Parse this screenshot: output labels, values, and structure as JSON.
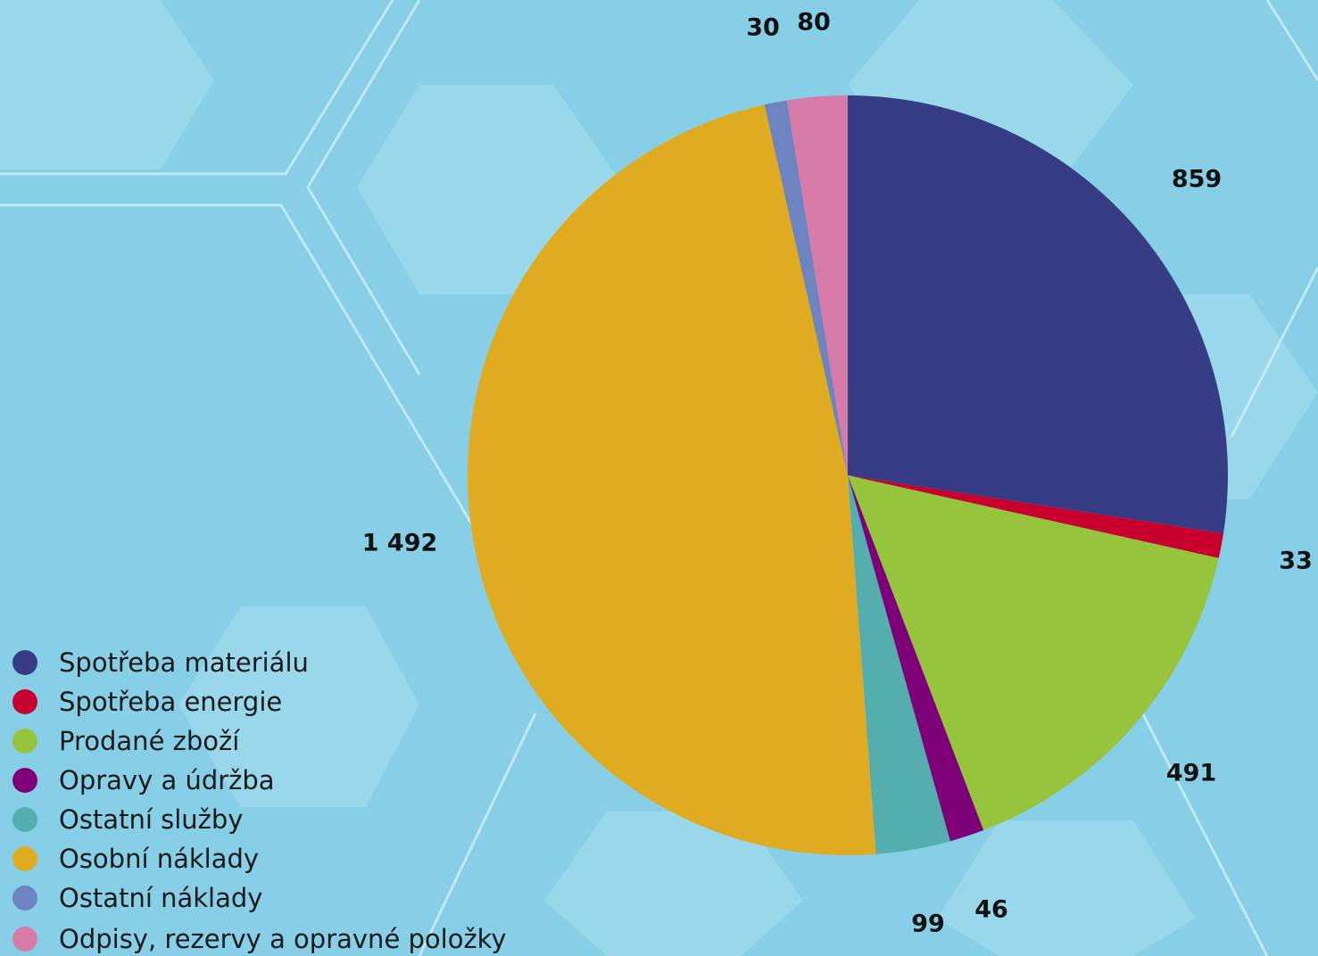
{
  "chart_data": {
    "type": "pie",
    "title": "",
    "legend_position": "bottom-left",
    "categories": [
      "Spotřeba materiálu",
      "Spotřeba energie",
      "Prodané zboží",
      "Opravy a údržba",
      "Ostatní služby",
      "Osobní náklady",
      "Ostatní náklady",
      "Odpisy, rezervy a opravné položky"
    ],
    "values": [
      859,
      33,
      491,
      46,
      99,
      1492,
      30,
      80
    ],
    "value_labels": [
      "859",
      "33",
      "491",
      "46",
      "99",
      "1 492",
      "30",
      "80"
    ],
    "colors": [
      "#363d84",
      "#c8002d",
      "#96c43c",
      "#7d0078",
      "#55aeae",
      "#dfac21",
      "#6e84c0",
      "#d77ba8"
    ]
  }
}
